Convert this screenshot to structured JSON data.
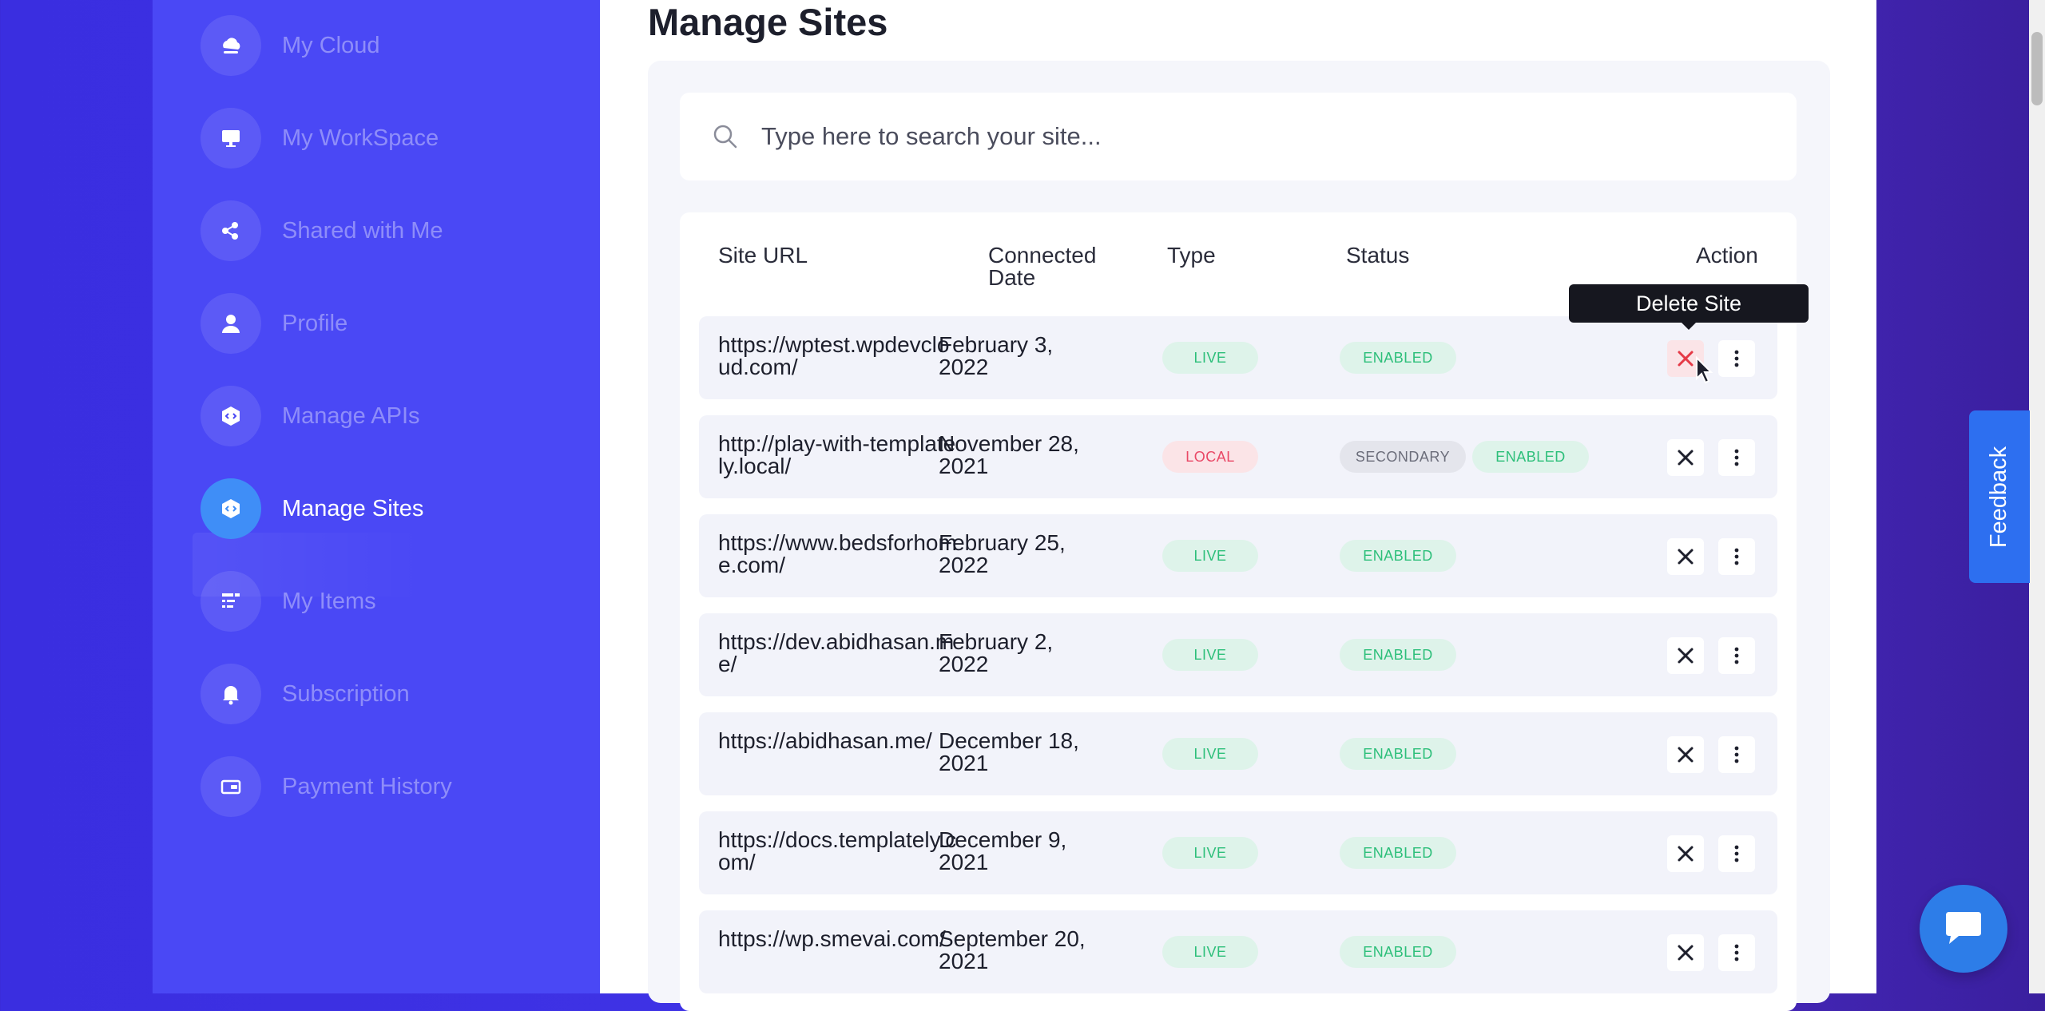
{
  "sidebar": {
    "items": [
      {
        "label": "My Cloud",
        "icon": "cloud-stack-icon"
      },
      {
        "label": "My WorkSpace",
        "icon": "workspace-icon"
      },
      {
        "label": "Shared with Me",
        "icon": "share-icon"
      },
      {
        "label": "Profile",
        "icon": "user-icon"
      },
      {
        "label": "Manage APIs",
        "icon": "api-icon"
      },
      {
        "label": "Manage Sites",
        "icon": "sites-icon",
        "active": true
      },
      {
        "label": "My Items",
        "icon": "items-icon"
      },
      {
        "label": "Subscription",
        "icon": "bell-icon"
      },
      {
        "label": "Payment History",
        "icon": "wallet-icon"
      }
    ]
  },
  "main": {
    "title": "Manage Sites",
    "search": {
      "placeholder": "Type here to search your site..."
    },
    "table": {
      "headers": {
        "url": "Site URL",
        "date_line1": "Connected",
        "date_line2": "Date",
        "type": "Type",
        "status": "Status",
        "action": "Action"
      },
      "rows": [
        {
          "url": "https://wptest.wpdevcloud.com/",
          "date": "February 3, 2022",
          "type": "LIVE",
          "status": [
            "ENABLED"
          ]
        },
        {
          "url": "http://play-with-templately.local/",
          "date": "November 28, 2021",
          "type": "LOCAL",
          "status": [
            "SECONDARY",
            "ENABLED"
          ]
        },
        {
          "url": "https://www.bedsforhome.com/",
          "date": "February 25, 2022",
          "type": "LIVE",
          "status": [
            "ENABLED"
          ]
        },
        {
          "url": "https://dev.abidhasan.me/",
          "date": "February 2, 2022",
          "type": "LIVE",
          "status": [
            "ENABLED"
          ]
        },
        {
          "url": "https://abidhasan.me/",
          "date": "December 18, 2021",
          "type": "LIVE",
          "status": [
            "ENABLED"
          ]
        },
        {
          "url": "https://docs.templately.com/",
          "date": "December 9, 2021",
          "type": "LIVE",
          "status": [
            "ENABLED"
          ]
        },
        {
          "url": "https://wp.smevai.com/",
          "date": "September 20, 2021",
          "type": "LIVE",
          "status": [
            "ENABLED"
          ]
        }
      ]
    },
    "tooltip": "Delete Site"
  },
  "feedback_label": "Feedback",
  "colors": {
    "sidebar_bg": "#4a48f5",
    "accent": "#3f8ef7",
    "live": "#2dbf7a",
    "local": "#e94866",
    "delete_hover": "#e53946"
  }
}
